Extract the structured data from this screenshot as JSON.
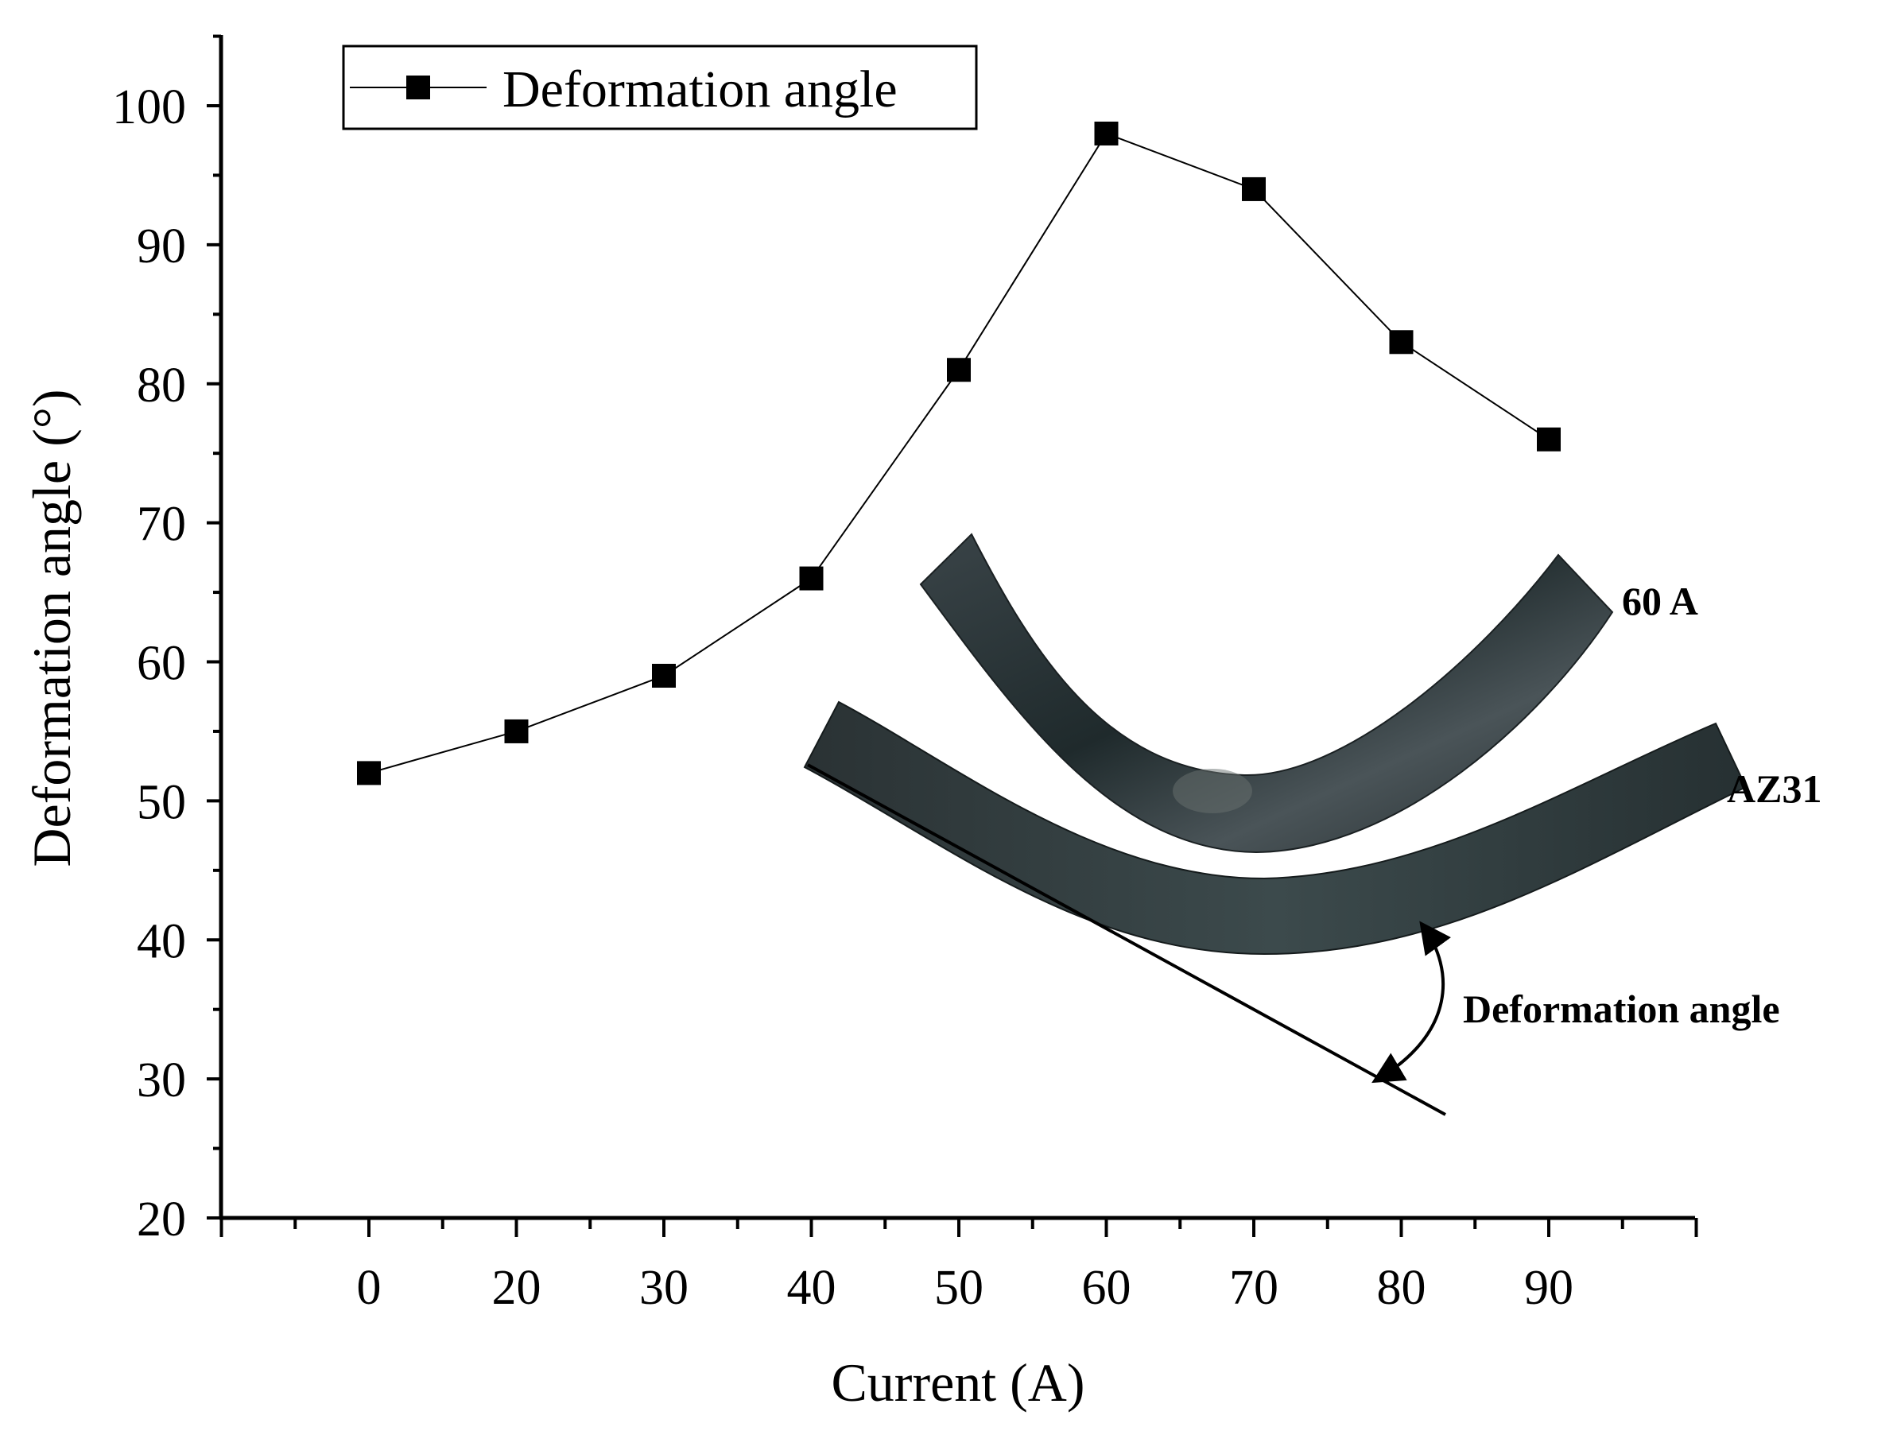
{
  "chart_data": {
    "type": "line",
    "categories": [
      "0",
      "20",
      "30",
      "40",
      "50",
      "60",
      "70",
      "80",
      "90"
    ],
    "series": [
      {
        "name": "Deformation angle",
        "values": [
          52,
          55,
          59,
          66,
          81,
          98,
          94,
          83,
          76
        ],
        "marker": "square",
        "color": "#000000"
      }
    ],
    "title": "",
    "xlabel": "Current (A)",
    "ylabel": "Deformation angle (°)",
    "ylim": [
      20,
      105
    ],
    "yticks": [
      20,
      30,
      40,
      50,
      60,
      70,
      80,
      90,
      100
    ],
    "grid": false,
    "legend": "top-left",
    "annotations": {
      "sample_top_label": "60 A",
      "sample_bottom_label": "AZ31",
      "angle_label": "Deformation angle"
    }
  }
}
